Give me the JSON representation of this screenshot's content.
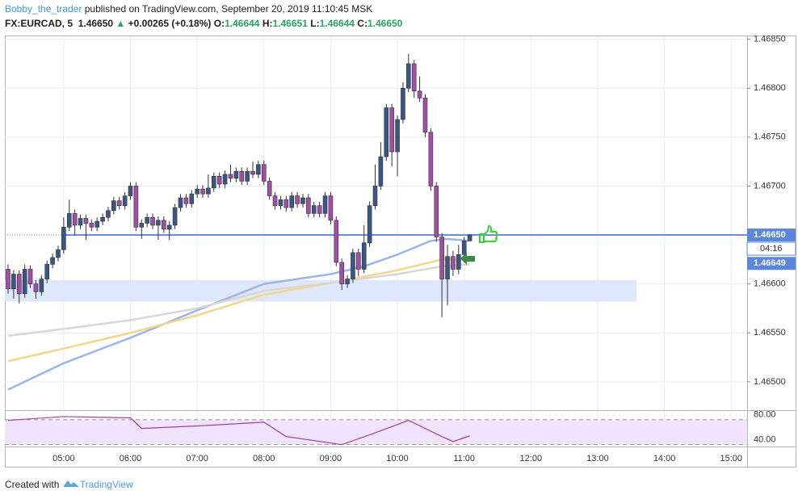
{
  "header": {
    "author": "Bobby_the_trader",
    "published": "published on TradingView.com, September 20, 2019 11:10:45 MSK",
    "symbol": "FX:EURCAD, 5",
    "last": "1.46650",
    "arrow": "▲",
    "change": "+0.00265 (+0.18%)",
    "o_label": "O:",
    "o": "1.46644",
    "h_label": "H:",
    "h": "1.46651",
    "l_label": "L:",
    "l": "1.46644",
    "c_label": "C:",
    "c": "1.46650"
  },
  "footer": {
    "created": "Created with",
    "brand": "TradingView"
  },
  "chart_data": {
    "type": "candlestick",
    "up_color": "#3b5686",
    "down_color": "#a24ea8",
    "x": [
      "04:10",
      "04:15",
      "04:20",
      "04:25",
      "04:30",
      "04:35",
      "04:40",
      "04:45",
      "04:50",
      "04:55",
      "05:00",
      "05:05",
      "05:10",
      "05:15",
      "05:20",
      "05:25",
      "05:30",
      "05:35",
      "05:40",
      "05:45",
      "05:50",
      "05:55",
      "06:00",
      "06:05",
      "06:10",
      "06:15",
      "06:20",
      "06:25",
      "06:30",
      "06:35",
      "06:40",
      "06:45",
      "06:50",
      "06:55",
      "07:00",
      "07:05",
      "07:10",
      "07:15",
      "07:20",
      "07:25",
      "07:30",
      "07:35",
      "07:40",
      "07:45",
      "07:50",
      "07:55",
      "08:00",
      "08:05",
      "08:10",
      "08:15",
      "08:20",
      "08:25",
      "08:30",
      "08:35",
      "08:40",
      "08:45",
      "08:50",
      "08:55",
      "09:00",
      "09:05",
      "09:10",
      "09:15",
      "09:20",
      "09:25",
      "09:30",
      "09:35",
      "09:40",
      "09:45",
      "09:50",
      "09:55",
      "10:00",
      "10:05",
      "10:10",
      "10:15",
      "10:20",
      "10:25",
      "10:30",
      "10:35",
      "10:40",
      "10:45",
      "10:50",
      "10:55",
      "11:00",
      "11:05"
    ],
    "ohlc": [
      [
        1.46615,
        1.4662,
        1.4659,
        1.46595
      ],
      [
        1.46595,
        1.46614,
        1.46585,
        1.4661
      ],
      [
        1.4661,
        1.46614,
        1.4658,
        1.4659
      ],
      [
        1.4659,
        1.4662,
        1.46586,
        1.46615
      ],
      [
        1.46615,
        1.46619,
        1.46596,
        1.466
      ],
      [
        1.466,
        1.46604,
        1.46585,
        1.46592
      ],
      [
        1.46592,
        1.46609,
        1.46588,
        1.46605
      ],
      [
        1.46605,
        1.46624,
        1.46601,
        1.4662
      ],
      [
        1.4662,
        1.46631,
        1.46616,
        1.46627
      ],
      [
        1.46627,
        1.46639,
        1.46623,
        1.46635
      ],
      [
        1.46635,
        1.46668,
        1.46631,
        1.46658
      ],
      [
        1.46658,
        1.46686,
        1.46654,
        1.46672
      ],
      [
        1.46672,
        1.46676,
        1.4665,
        1.4666
      ],
      [
        1.4666,
        1.46671,
        1.46656,
        1.46667
      ],
      [
        1.46667,
        1.46671,
        1.46645,
        1.46662
      ],
      [
        1.46662,
        1.46666,
        1.46654,
        1.46658
      ],
      [
        1.46658,
        1.46668,
        1.46654,
        1.46664
      ],
      [
        1.46664,
        1.46672,
        1.4666,
        1.46668
      ],
      [
        1.46668,
        1.46679,
        1.46664,
        1.46675
      ],
      [
        1.46675,
        1.46689,
        1.46671,
        1.46685
      ],
      [
        1.46685,
        1.46689,
        1.46676,
        1.4668
      ],
      [
        1.4668,
        1.46694,
        1.46676,
        1.4669
      ],
      [
        1.4669,
        1.46704,
        1.46686,
        1.467
      ],
      [
        1.467,
        1.46704,
        1.46654,
        1.46658
      ],
      [
        1.46658,
        1.46666,
        1.46646,
        1.46662
      ],
      [
        1.46662,
        1.46672,
        1.46658,
        1.46668
      ],
      [
        1.46668,
        1.46672,
        1.46656,
        1.4666
      ],
      [
        1.4666,
        1.46669,
        1.46645,
        1.46665
      ],
      [
        1.46665,
        1.46669,
        1.46652,
        1.46656
      ],
      [
        1.46656,
        1.46664,
        1.46645,
        1.4666
      ],
      [
        1.4666,
        1.46682,
        1.46656,
        1.46678
      ],
      [
        1.46678,
        1.46692,
        1.46674,
        1.46688
      ],
      [
        1.46688,
        1.46692,
        1.46678,
        1.46682
      ],
      [
        1.46682,
        1.46696,
        1.46678,
        1.46692
      ],
      [
        1.46692,
        1.46701,
        1.46688,
        1.46697
      ],
      [
        1.46697,
        1.46701,
        1.46688,
        1.46692
      ],
      [
        1.46692,
        1.46712,
        1.46688,
        1.46698
      ],
      [
        1.46698,
        1.46714,
        1.46694,
        1.4671
      ],
      [
        1.4671,
        1.46714,
        1.46698,
        1.46702
      ],
      [
        1.46702,
        1.46716,
        1.46698,
        1.46712
      ],
      [
        1.46712,
        1.46722,
        1.46704,
        1.46708
      ],
      [
        1.46708,
        1.46719,
        1.46704,
        1.46715
      ],
      [
        1.46715,
        1.46719,
        1.46701,
        1.46705
      ],
      [
        1.46705,
        1.46719,
        1.46701,
        1.46715
      ],
      [
        1.46715,
        1.46725,
        1.46708,
        1.46712
      ],
      [
        1.46712,
        1.46726,
        1.46708,
        1.46722
      ],
      [
        1.46722,
        1.46726,
        1.46701,
        1.46705
      ],
      [
        1.46705,
        1.46709,
        1.46686,
        1.4669
      ],
      [
        1.4669,
        1.46694,
        1.46676,
        1.4668
      ],
      [
        1.4668,
        1.4669,
        1.46676,
        1.46686
      ],
      [
        1.46686,
        1.4669,
        1.46674,
        1.46678
      ],
      [
        1.46678,
        1.46694,
        1.46674,
        1.4669
      ],
      [
        1.4669,
        1.46694,
        1.46678,
        1.46682
      ],
      [
        1.46682,
        1.46692,
        1.46678,
        1.46688
      ],
      [
        1.46688,
        1.46692,
        1.46668,
        1.46672
      ],
      [
        1.46672,
        1.46684,
        1.46668,
        1.4668
      ],
      [
        1.4668,
        1.46684,
        1.46668,
        1.46672
      ],
      [
        1.46672,
        1.46694,
        1.46668,
        1.4669
      ],
      [
        1.4669,
        1.46694,
        1.46661,
        1.46665
      ],
      [
        1.46665,
        1.46669,
        1.46618,
        1.46622
      ],
      [
        1.46622,
        1.46626,
        1.46594,
        1.466
      ],
      [
        1.466,
        1.46609,
        1.46596,
        1.46605
      ],
      [
        1.46605,
        1.46636,
        1.46601,
        1.46632
      ],
      [
        1.46632,
        1.46636,
        1.46608,
        1.46615
      ],
      [
        1.46615,
        1.4666,
        1.46611,
        1.46642
      ],
      [
        1.46642,
        1.46684,
        1.46638,
        1.4668
      ],
      [
        1.4668,
        1.46722,
        1.46676,
        1.467
      ],
      [
        1.467,
        1.46745,
        1.46696,
        1.4673
      ],
      [
        1.4673,
        1.46784,
        1.46726,
        1.4678
      ],
      [
        1.4678,
        1.46784,
        1.4672,
        1.46735
      ],
      [
        1.46735,
        1.46772,
        1.4671,
        1.46768
      ],
      [
        1.46768,
        1.46806,
        1.46764,
        1.468
      ],
      [
        1.468,
        1.46835,
        1.46796,
        1.46825
      ],
      [
        1.46825,
        1.46829,
        1.4679,
        1.46797
      ],
      [
        1.46797,
        1.46812,
        1.46786,
        1.4679
      ],
      [
        1.4679,
        1.46794,
        1.4675,
        1.46755
      ],
      [
        1.46755,
        1.46759,
        1.46695,
        1.467
      ],
      [
        1.467,
        1.46704,
        1.46643,
        1.46648
      ],
      [
        1.46648,
        1.46652,
        1.46566,
        1.46605
      ],
      [
        1.46605,
        1.4664,
        1.46578,
        1.46628
      ],
      [
        1.46628,
        1.46634,
        1.46608,
        1.46615
      ],
      [
        1.46615,
        1.4664,
        1.4661,
        1.4663
      ],
      [
        1.4663,
        1.46648,
        1.46622,
        1.46644
      ],
      [
        1.46644,
        1.46651,
        1.46644,
        1.4665
      ]
    ],
    "series": [
      {
        "color": "#9bb4ec",
        "x": [
          "04:10",
          "05:00",
          "06:00",
          "07:00",
          "08:00",
          "09:00",
          "09:30",
          "10:00",
          "10:30",
          "10:45",
          "11:05"
        ],
        "values": [
          1.46492,
          1.46519,
          1.46545,
          1.46573,
          1.466,
          1.4661,
          1.46618,
          1.4663,
          1.46644,
          1.46646,
          1.46644
        ]
      },
      {
        "color": "#f2d68c",
        "x": [
          "04:10",
          "05:00",
          "06:00",
          "07:00",
          "08:00",
          "09:00",
          "10:00",
          "10:40",
          "11:05"
        ],
        "values": [
          1.46521,
          1.46534,
          1.4655,
          1.46568,
          1.46589,
          1.46601,
          1.46614,
          1.46625,
          1.46625
        ]
      },
      {
        "color": "#d9d6d3",
        "x": [
          "04:10",
          "05:00",
          "06:00",
          "07:00",
          "08:00",
          "09:00",
          "10:00",
          "10:40",
          "11:05"
        ],
        "values": [
          1.46547,
          1.46554,
          1.46563,
          1.46575,
          1.46593,
          1.46601,
          1.4661,
          1.46618,
          1.4662
        ]
      }
    ],
    "hline": {
      "value": 1.4665,
      "color": "#6a8fe0"
    },
    "zone": {
      "from": "04:10",
      "to": "13:35",
      "low": 1.46582,
      "high": 1.46604,
      "color": "#dbe6fa"
    },
    "xlim": [
      "04:10",
      "15:10"
    ],
    "xticks": [
      "05:00",
      "06:00",
      "07:00",
      "08:00",
      "09:00",
      "10:00",
      "11:00",
      "12:00",
      "13:00",
      "14:00",
      "15:00"
    ],
    "ylim": [
      1.46471,
      1.46853
    ],
    "yticks": [
      {
        "value": 1.465,
        "label": "1.46500"
      },
      {
        "value": 1.4655,
        "label": "1.46550"
      },
      {
        "value": 1.466,
        "label": "1.46600"
      },
      {
        "value": 1.467,
        "label": "1.46700"
      },
      {
        "value": 1.4675,
        "label": "1.46750"
      },
      {
        "value": 1.468,
        "label": "1.46800"
      },
      {
        "value": 1.4685,
        "label": "1.46850"
      }
    ],
    "price_labels": [
      {
        "value": 1.4665,
        "label": "1.46650",
        "color": "#5a86dc"
      },
      {
        "value": 1.46649,
        "label": "1.46649",
        "color": "#5a86dc"
      }
    ],
    "countdown": "04:16",
    "grid": true,
    "rsi": {
      "color": "#a0409e",
      "band_color": "#f1e3fb",
      "x": [
        "04:10",
        "05:00",
        "06:00",
        "06:10",
        "07:00",
        "08:00",
        "08:20",
        "09:10",
        "09:40",
        "10:10",
        "10:40",
        "10:50",
        "11:05"
      ],
      "values": [
        79,
        85,
        83,
        66,
        70,
        76,
        53,
        40,
        59,
        79,
        53,
        45,
        54
      ],
      "ylim": [
        37,
        94
      ],
      "yticks": [
        {
          "value": 40,
          "label": "40.00"
        },
        {
          "value": 80,
          "label": "80.00"
        }
      ]
    }
  }
}
